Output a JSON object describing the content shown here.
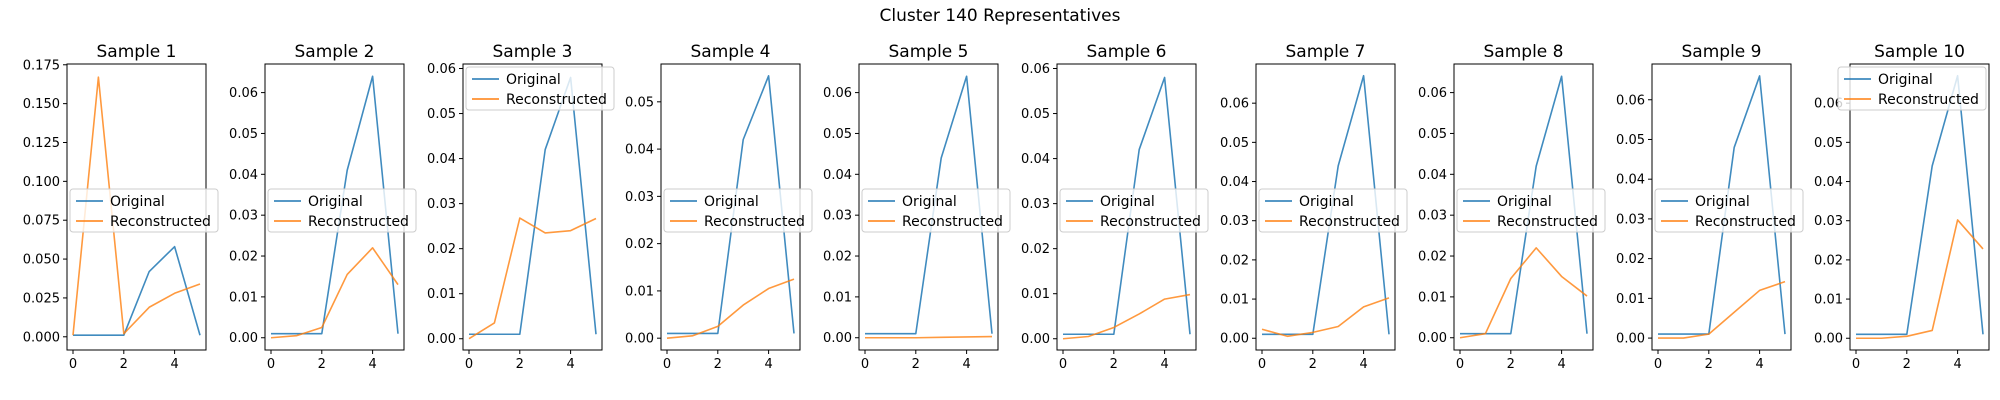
{
  "suptitle": "Cluster 140 Representatives",
  "colors": {
    "original": "#1f77b4",
    "reconstructed": "#ff7f0e"
  },
  "chart_data": [
    {
      "type": "line",
      "title": "Sample 1",
      "x": [
        0,
        1,
        2,
        3,
        4,
        5
      ],
      "ylim": [
        -0.0085,
        0.1755
      ],
      "yticks": [
        0.0,
        0.025,
        0.05,
        0.075,
        0.1,
        0.125,
        0.15,
        0.175
      ],
      "ytick_labels": [
        "0.000",
        "0.025",
        "0.050",
        "0.075",
        "0.100",
        "0.125",
        "0.150",
        "0.175"
      ],
      "xticks": [
        0,
        2,
        4
      ],
      "xtick_labels": [
        "0",
        "2",
        "4"
      ],
      "legend": "center-left",
      "series": [
        {
          "name": "Original",
          "values": [
            0.001,
            0.001,
            0.001,
            0.042,
            0.058,
            0.001
          ]
        },
        {
          "name": "Reconstructed",
          "values": [
            0.001,
            0.167,
            0.002,
            0.019,
            0.028,
            0.034
          ]
        }
      ]
    },
    {
      "type": "line",
      "title": "Sample 2",
      "x": [
        0,
        1,
        2,
        3,
        4,
        5
      ],
      "ylim": [
        -0.003,
        0.067
      ],
      "yticks": [
        0.0,
        0.01,
        0.02,
        0.03,
        0.04,
        0.05,
        0.06
      ],
      "ytick_labels": [
        "0.00",
        "0.01",
        "0.02",
        "0.03",
        "0.04",
        "0.05",
        "0.06"
      ],
      "xticks": [
        0,
        2,
        4
      ],
      "xtick_labels": [
        "0",
        "2",
        "4"
      ],
      "legend": "center-left",
      "series": [
        {
          "name": "Original",
          "values": [
            0.001,
            0.001,
            0.001,
            0.041,
            0.064,
            0.001
          ]
        },
        {
          "name": "Reconstructed",
          "values": [
            0.0,
            0.0005,
            0.0025,
            0.0155,
            0.022,
            0.013
          ]
        }
      ]
    },
    {
      "type": "line",
      "title": "Sample 3",
      "x": [
        0,
        1,
        2,
        3,
        4,
        5
      ],
      "ylim": [
        -0.0025,
        0.061
      ],
      "yticks": [
        0.0,
        0.01,
        0.02,
        0.03,
        0.04,
        0.05,
        0.06
      ],
      "ytick_labels": [
        "0.00",
        "0.01",
        "0.02",
        "0.03",
        "0.04",
        "0.05",
        "0.06"
      ],
      "xticks": [
        0,
        2,
        4
      ],
      "xtick_labels": [
        "0",
        "2",
        "4"
      ],
      "legend": "upper-left",
      "series": [
        {
          "name": "Original",
          "values": [
            0.001,
            0.001,
            0.001,
            0.042,
            0.058,
            0.001
          ]
        },
        {
          "name": "Reconstructed",
          "values": [
            0.0,
            0.0035,
            0.0268,
            0.0235,
            0.024,
            0.0267
          ]
        }
      ]
    },
    {
      "type": "line",
      "title": "Sample 4",
      "x": [
        0,
        1,
        2,
        3,
        4,
        5
      ],
      "ylim": [
        -0.0025,
        0.058
      ],
      "yticks": [
        0.0,
        0.01,
        0.02,
        0.03,
        0.04,
        0.05
      ],
      "ytick_labels": [
        "0.00",
        "0.01",
        "0.02",
        "0.03",
        "0.04",
        "0.05"
      ],
      "xticks": [
        0,
        2,
        4
      ],
      "xtick_labels": [
        "0",
        "2",
        "4"
      ],
      "legend": "center-left",
      "series": [
        {
          "name": "Original",
          "values": [
            0.001,
            0.001,
            0.001,
            0.042,
            0.0555,
            0.001
          ]
        },
        {
          "name": "Reconstructed",
          "values": [
            0.0,
            0.0005,
            0.0025,
            0.007,
            0.0105,
            0.0125
          ]
        }
      ]
    },
    {
      "type": "line",
      "title": "Sample 5",
      "x": [
        0,
        1,
        2,
        3,
        4,
        5
      ],
      "ylim": [
        -0.003,
        0.067
      ],
      "yticks": [
        0.0,
        0.01,
        0.02,
        0.03,
        0.04,
        0.05,
        0.06
      ],
      "ytick_labels": [
        "0.00",
        "0.01",
        "0.02",
        "0.03",
        "0.04",
        "0.05",
        "0.06"
      ],
      "xticks": [
        0,
        2,
        4
      ],
      "xtick_labels": [
        "0",
        "2",
        "4"
      ],
      "legend": "center-left",
      "series": [
        {
          "name": "Original",
          "values": [
            0.001,
            0.001,
            0.001,
            0.044,
            0.064,
            0.001
          ]
        },
        {
          "name": "Reconstructed",
          "values": [
            0.0,
            0.0,
            0.0,
            0.0001,
            0.0002,
            0.0003
          ]
        }
      ]
    },
    {
      "type": "line",
      "title": "Sample 6",
      "x": [
        0,
        1,
        2,
        3,
        4,
        5
      ],
      "ylim": [
        -0.0025,
        0.061
      ],
      "yticks": [
        0.0,
        0.01,
        0.02,
        0.03,
        0.04,
        0.05,
        0.06
      ],
      "ytick_labels": [
        "0.00",
        "0.01",
        "0.02",
        "0.03",
        "0.04",
        "0.05",
        "0.06"
      ],
      "xticks": [
        0,
        2,
        4
      ],
      "xtick_labels": [
        "0",
        "2",
        "4"
      ],
      "legend": "center-left",
      "series": [
        {
          "name": "Original",
          "values": [
            0.001,
            0.001,
            0.001,
            0.042,
            0.058,
            0.001
          ]
        },
        {
          "name": "Reconstructed",
          "values": [
            0.0,
            0.0005,
            0.0025,
            0.0055,
            0.0088,
            0.0098
          ]
        }
      ]
    },
    {
      "type": "line",
      "title": "Sample 7",
      "x": [
        0,
        1,
        2,
        3,
        4,
        5
      ],
      "ylim": [
        -0.003,
        0.07
      ],
      "yticks": [
        0.0,
        0.01,
        0.02,
        0.03,
        0.04,
        0.05,
        0.06
      ],
      "ytick_labels": [
        "0.00",
        "0.01",
        "0.02",
        "0.03",
        "0.04",
        "0.05",
        "0.06"
      ],
      "xticks": [
        0,
        2,
        4
      ],
      "xtick_labels": [
        "0",
        "2",
        "4"
      ],
      "legend": "center-left",
      "series": [
        {
          "name": "Original",
          "values": [
            0.001,
            0.001,
            0.001,
            0.044,
            0.067,
            0.001
          ]
        },
        {
          "name": "Reconstructed",
          "values": [
            0.0023,
            0.0005,
            0.0015,
            0.003,
            0.008,
            0.0103
          ]
        }
      ]
    },
    {
      "type": "line",
      "title": "Sample 8",
      "x": [
        0,
        1,
        2,
        3,
        4,
        5
      ],
      "ylim": [
        -0.003,
        0.067
      ],
      "yticks": [
        0.0,
        0.01,
        0.02,
        0.03,
        0.04,
        0.05,
        0.06
      ],
      "ytick_labels": [
        "0.00",
        "0.01",
        "0.02",
        "0.03",
        "0.04",
        "0.05",
        "0.06"
      ],
      "xticks": [
        0,
        2,
        4
      ],
      "xtick_labels": [
        "0",
        "2",
        "4"
      ],
      "legend": "center-left",
      "series": [
        {
          "name": "Original",
          "values": [
            0.001,
            0.001,
            0.001,
            0.042,
            0.064,
            0.001
          ]
        },
        {
          "name": "Reconstructed",
          "values": [
            0.0,
            0.001,
            0.0145,
            0.022,
            0.015,
            0.0102
          ]
        }
      ]
    },
    {
      "type": "line",
      "title": "Sample 9",
      "x": [
        0,
        1,
        2,
        3,
        4,
        5
      ],
      "ylim": [
        -0.003,
        0.069
      ],
      "yticks": [
        0.0,
        0.01,
        0.02,
        0.03,
        0.04,
        0.05,
        0.06
      ],
      "ytick_labels": [
        "0.00",
        "0.01",
        "0.02",
        "0.03",
        "0.04",
        "0.05",
        "0.06"
      ],
      "xticks": [
        0,
        2,
        4
      ],
      "xtick_labels": [
        "0",
        "2",
        "4"
      ],
      "legend": "center-left",
      "series": [
        {
          "name": "Original",
          "values": [
            0.001,
            0.001,
            0.001,
            0.048,
            0.066,
            0.001
          ]
        },
        {
          "name": "Reconstructed",
          "values": [
            0.0,
            0.0,
            0.001,
            0.0065,
            0.012,
            0.0142
          ]
        }
      ]
    },
    {
      "type": "line",
      "title": "Sample 10",
      "x": [
        0,
        1,
        2,
        3,
        4,
        5
      ],
      "ylim": [
        -0.003,
        0.07
      ],
      "yticks": [
        0.0,
        0.01,
        0.02,
        0.03,
        0.04,
        0.05,
        0.06
      ],
      "ytick_labels": [
        "0.00",
        "0.01",
        "0.02",
        "0.03",
        "0.04",
        "0.05",
        "0.06"
      ],
      "xticks": [
        0,
        2,
        4
      ],
      "xtick_labels": [
        "0",
        "2",
        "4"
      ],
      "legend": "upper-right",
      "series": [
        {
          "name": "Original",
          "values": [
            0.001,
            0.001,
            0.001,
            0.044,
            0.067,
            0.001
          ]
        },
        {
          "name": "Reconstructed",
          "values": [
            0.0,
            0.0,
            0.0005,
            0.002,
            0.0302,
            0.0228
          ]
        }
      ]
    }
  ]
}
